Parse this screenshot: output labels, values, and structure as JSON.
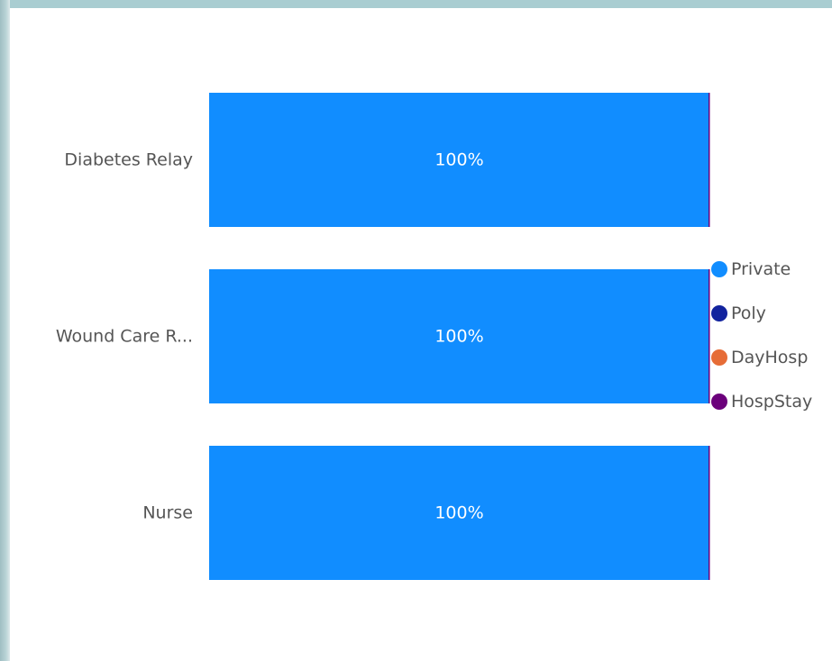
{
  "chart_data": {
    "type": "bar",
    "orientation": "horizontal",
    "stacked_percent": true,
    "categories": [
      "Diabetes Relay",
      "Wound Care R...",
      "Nurse"
    ],
    "series": [
      {
        "name": "Private",
        "color": "#118dff",
        "values": [
          100,
          100,
          100
        ]
      },
      {
        "name": "Poly",
        "color": "#12239e",
        "values": [
          0,
          0,
          0
        ]
      },
      {
        "name": "DayHosp",
        "color": "#e66c37",
        "values": [
          0,
          0,
          0
        ]
      },
      {
        "name": "HospStay",
        "color": "#6b007b",
        "values": [
          0,
          0,
          0
        ]
      }
    ],
    "data_labels": [
      "100%",
      "100%",
      "100%"
    ],
    "xlim": [
      0,
      100
    ],
    "grid": false,
    "legend_position": "right"
  }
}
